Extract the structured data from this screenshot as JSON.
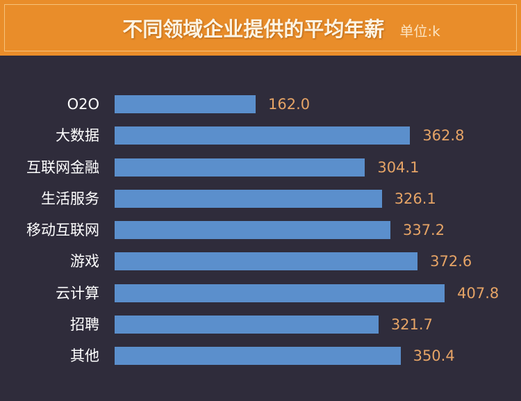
{
  "header": {
    "title": "不同领域企业提供的平均年薪",
    "unit": "单位:k"
  },
  "colors": {
    "header_bg": "#e98d2a",
    "background": "#2f2c3b",
    "bar": "#5b8fcc",
    "value_label": "#e6a466",
    "category_label": "#ffffff"
  },
  "chart_data": {
    "type": "bar",
    "orientation": "horizontal",
    "title": "不同领域企业提供的平均年薪",
    "subtitle": "单位:k",
    "xlabel": "",
    "ylabel": "",
    "grid": false,
    "legend": null,
    "categories": [
      "O2O",
      "大数据",
      "互联网金融",
      "生活服务",
      "移动互联网",
      "游戏",
      "云计算",
      "招聘",
      "其他"
    ],
    "values": [
      162.0,
      362.8,
      304.1,
      326.1,
      337.2,
      372.6,
      407.8,
      321.7,
      350.4
    ],
    "value_labels": [
      "162.0",
      "362.8",
      "304.1",
      "326.1",
      "337.2",
      "372.6",
      "407.8",
      "321.7",
      "350.4"
    ]
  }
}
